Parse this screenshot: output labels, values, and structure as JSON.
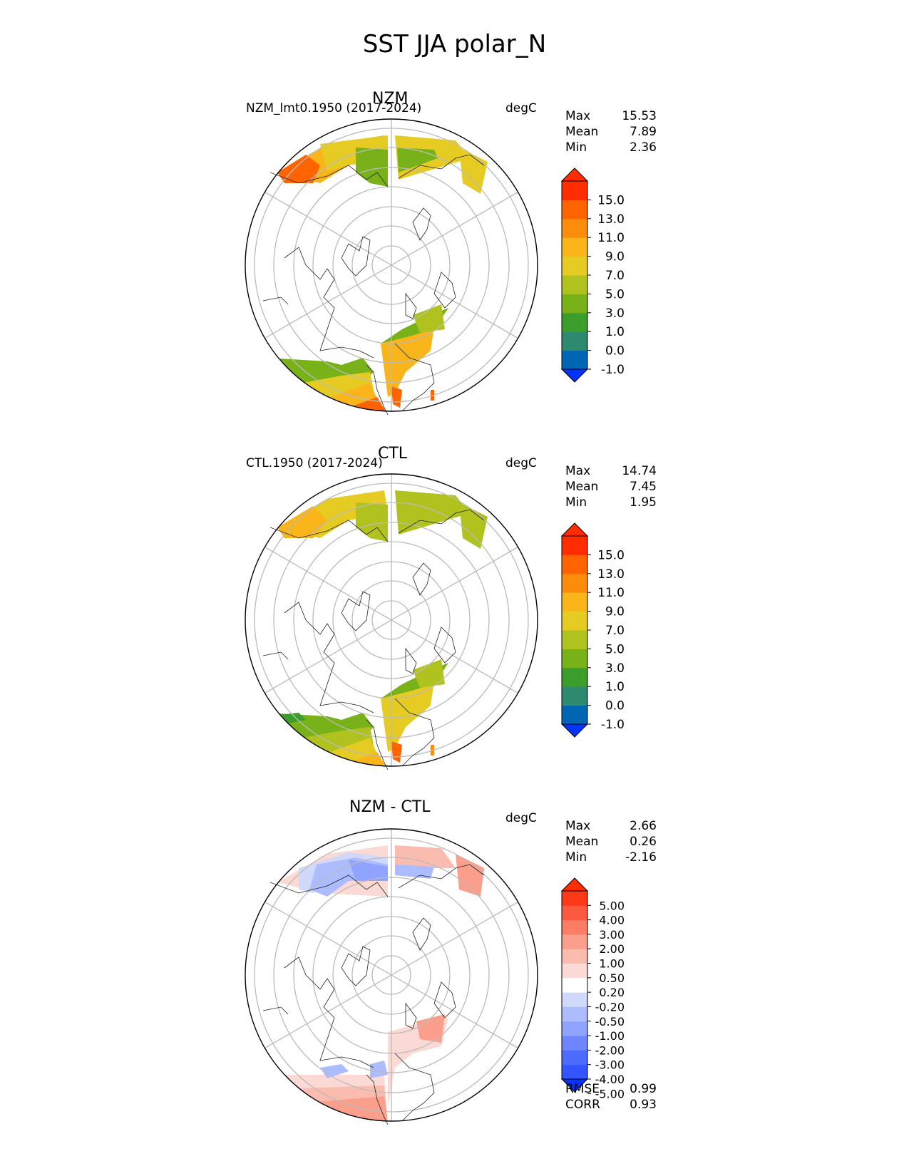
{
  "figure": {
    "title": "SST JJA polar_N"
  },
  "panels": [
    {
      "title": "NZM",
      "left_label": "NZM_lmt0.1950 (2017-2024)",
      "units": "degC",
      "stats": [
        {
          "label": "Max",
          "value": "15.53"
        },
        {
          "label": "Mean",
          "value": "7.89"
        },
        {
          "label": "Min",
          "value": "2.36"
        }
      ],
      "colorbar": {
        "labels": [
          "15.0",
          "13.0",
          "11.0",
          "9.0",
          "7.0",
          "5.0",
          "3.0",
          "1.0",
          "0.0",
          "-1.0"
        ],
        "colors": [
          "#0033ff",
          "#0065b3",
          "#2e8a6e",
          "#3c9e2a",
          "#78b218",
          "#b0c21e",
          "#e6cc22",
          "#f9b51a",
          "#fb8c0c",
          "#ff6400",
          "#ff2d00",
          "#ff2d00"
        ]
      },
      "chart_data": {
        "type": "polar stereographic filled contour",
        "projection": "north polar stereographic",
        "variable": "SST",
        "season": "JJA",
        "regions": [
          {
            "name": "North Atlantic (lower-left)",
            "approx_range_degC": [
              3,
              13
            ]
          },
          {
            "name": "Norwegian/Barents Sea (lower-center)",
            "approx_range_degC": [
              3,
              15
            ]
          },
          {
            "name": "North Pacific / Bering Sea (top)",
            "approx_range_degC": [
              3,
              13
            ]
          }
        ]
      }
    },
    {
      "title": "CTL",
      "left_label": "CTL.1950 (2017-2024)",
      "units": "degC",
      "stats": [
        {
          "label": "Max",
          "value": "14.74"
        },
        {
          "label": "Mean",
          "value": "7.45"
        },
        {
          "label": "Min",
          "value": "1.95"
        }
      ],
      "colorbar": {
        "labels": [
          "15.0",
          "13.0",
          "11.0",
          "9.0",
          "7.0",
          "5.0",
          "3.0",
          "1.0",
          "0.0",
          "-1.0"
        ],
        "colors": [
          "#0033ff",
          "#0065b3",
          "#2e8a6e",
          "#3c9e2a",
          "#78b218",
          "#b0c21e",
          "#e6cc22",
          "#f9b51a",
          "#fb8c0c",
          "#ff6400",
          "#ff2d00",
          "#ff2d00"
        ]
      },
      "chart_data": {
        "type": "polar stereographic filled contour",
        "projection": "north polar stereographic",
        "variable": "SST",
        "season": "JJA",
        "regions": [
          {
            "name": "North Atlantic (lower-left)",
            "approx_range_degC": [
              3,
              11
            ]
          },
          {
            "name": "Norwegian/Barents Sea (lower-center)",
            "approx_range_degC": [
              3,
              13
            ]
          },
          {
            "name": "North Pacific / Bering Sea (top)",
            "approx_range_degC": [
              3,
              11
            ]
          }
        ]
      }
    },
    {
      "title": "NZM - CTL",
      "left_label": "",
      "units": "degC",
      "stats": [
        {
          "label": "Max",
          "value": "2.66"
        },
        {
          "label": "Mean",
          "value": "0.26"
        },
        {
          "label": "Min",
          "value": "-2.16"
        }
      ],
      "colorbar": {
        "labels": [
          "5.00",
          "4.00",
          "3.00",
          "2.00",
          "1.00",
          "0.50",
          "0.20",
          "-0.20",
          "-0.50",
          "-1.00",
          "-2.00",
          "-3.00",
          "-4.00",
          "-5.00"
        ],
        "colors": [
          "#0a32ff",
          "#3355ff",
          "#4c6cff",
          "#6d86ff",
          "#8fa3ff",
          "#acbcff",
          "#d0d9f9",
          "#ffffff",
          "#fbd9d5",
          "#fbbcb0",
          "#fb9e8c",
          "#fb7d66",
          "#fb5a40",
          "#fb3818",
          "#ff2d00"
        ]
      },
      "chart_data": {
        "type": "polar stereographic filled contour (difference)",
        "projection": "north polar stereographic",
        "variable": "SST difference",
        "season": "JJA",
        "regions": [
          {
            "name": "North Atlantic (lower-left)",
            "approx_range_degC": [
              0.5,
              2
            ]
          },
          {
            "name": "Labrador/Greenland margin",
            "approx_range_degC": [
              -1,
              -0.2
            ]
          },
          {
            "name": "Barents Sea (lower-right)",
            "approx_range_degC": [
              0.2,
              1
            ]
          },
          {
            "name": "North Pacific (top-left)",
            "approx_range_degC": [
              -2,
              -0.2
            ]
          },
          {
            "name": "Bering Sea (top-right)",
            "approx_range_degC": [
              0.5,
              1
            ]
          }
        ]
      }
    }
  ],
  "metrics": [
    {
      "label": "RMSE",
      "value": "0.99"
    },
    {
      "label": "CORR",
      "value": "0.93"
    }
  ]
}
